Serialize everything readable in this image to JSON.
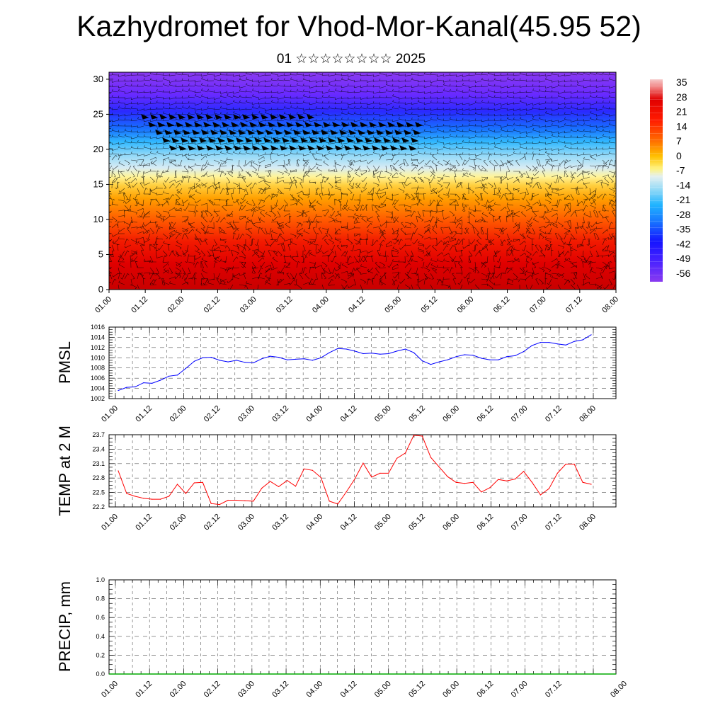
{
  "title": "Kazhydromet for Vhod-Mor-Kanal(45.95 52)",
  "subtitle": "01 ☆☆☆☆☆☆☆☆ 2025",
  "colors": {
    "pmsl_line": "#0000ff",
    "temp_line": "#ff0000",
    "precip_line": "#00aa00"
  },
  "chart_data": [
    {
      "type": "heatmap",
      "name": "vertical-section",
      "title": "",
      "xlabel": "",
      "ylabel": "",
      "x_ticks": [
        "01.00",
        "01.12",
        "02.00",
        "02.12",
        "03.00",
        "03.12",
        "04.00",
        "04.12",
        "05.00",
        "05.12",
        "06.00",
        "06.12",
        "07.00",
        "07.12",
        "08.00"
      ],
      "ylim": [
        0,
        31
      ],
      "y_ticks": [
        0,
        5,
        10,
        15,
        20,
        25,
        30
      ],
      "colorbar": {
        "labels": [
          "35",
          "28",
          "21",
          "14",
          "7",
          "0",
          "-7",
          "-14",
          "-21",
          "-28",
          "-35",
          "-42",
          "-49",
          "-56"
        ],
        "range": [
          -63,
          42
        ]
      },
      "overlay": "wind barbs"
    },
    {
      "type": "line",
      "name": "pmsl",
      "ylabel": "PMSL",
      "ylim": [
        1002,
        1016
      ],
      "y_ticks": [
        1002,
        1004,
        1006,
        1008,
        1010,
        1012,
        1014,
        1016
      ],
      "x_ticks": [
        "01.00",
        "01.12",
        "02.00",
        "02.12",
        "03.00",
        "03.12",
        "04.00",
        "04.12",
        "05.00",
        "05.12",
        "06.00",
        "06.12",
        "07.00",
        "07.12",
        "08.00"
      ],
      "x": [
        0,
        3,
        6,
        9,
        12,
        15,
        18,
        21,
        24,
        27,
        30,
        33,
        36,
        39,
        42,
        45,
        48,
        51,
        54,
        57,
        60,
        63,
        66,
        69,
        72,
        75,
        78,
        81,
        84,
        87,
        90,
        93,
        96,
        99,
        102,
        105,
        108,
        111,
        114,
        117,
        120,
        123,
        126,
        129,
        132,
        135,
        138,
        141,
        144,
        147,
        150,
        153,
        156,
        159,
        162,
        165,
        168
      ],
      "values": [
        1003.6,
        1004.2,
        1004.3,
        1005.1,
        1005.0,
        1005.6,
        1006.4,
        1006.6,
        1007.9,
        1009.3,
        1010.0,
        1010.1,
        1009.5,
        1009.2,
        1009.5,
        1009.1,
        1009.0,
        1009.8,
        1010.3,
        1010.1,
        1009.6,
        1009.7,
        1009.8,
        1009.5,
        1010.0,
        1011.0,
        1011.8,
        1011.7,
        1011.3,
        1010.8,
        1010.9,
        1010.7,
        1010.8,
        1011.3,
        1011.7,
        1011.0,
        1009.4,
        1008.7,
        1009.2,
        1009.6,
        1010.2,
        1010.6,
        1010.5,
        1009.9,
        1009.6,
        1009.6,
        1010.2,
        1010.4,
        1011.2,
        1012.4,
        1013.0,
        1013.0,
        1012.7,
        1012.5,
        1013.2,
        1013.5,
        1014.5
      ]
    },
    {
      "type": "line",
      "name": "temp",
      "ylabel": "TEMP at 2 M",
      "ylim": [
        22.2,
        23.7
      ],
      "y_ticks": [
        "22.2",
        "22.5",
        "22.8",
        "23.1",
        "23.4",
        "23.7"
      ],
      "x_ticks": [
        "01.00",
        "01.12",
        "02.00",
        "02.12",
        "03.00",
        "03.12",
        "04.00",
        "04.12",
        "05.00",
        "05.12",
        "06.00",
        "06.12",
        "07.00",
        "07.12",
        "08.00"
      ],
      "x": [
        0,
        3,
        6,
        9,
        12,
        15,
        18,
        21,
        24,
        27,
        30,
        33,
        36,
        39,
        42,
        45,
        48,
        51,
        54,
        57,
        60,
        63,
        66,
        69,
        72,
        75,
        78,
        81,
        84,
        87,
        90,
        93,
        96,
        99,
        102,
        105,
        108,
        111,
        114,
        117,
        120,
        123,
        126,
        129,
        132,
        135,
        138,
        141,
        144,
        147,
        150,
        153,
        156,
        159,
        162,
        165,
        168
      ],
      "values": [
        22.95,
        22.48,
        22.42,
        22.38,
        22.36,
        22.36,
        22.42,
        22.67,
        22.48,
        22.7,
        22.71,
        22.27,
        22.25,
        22.34,
        22.34,
        22.33,
        22.32,
        22.59,
        22.73,
        22.62,
        22.75,
        22.63,
        22.99,
        22.96,
        22.81,
        22.32,
        22.26,
        22.51,
        22.78,
        23.11,
        22.82,
        22.9,
        22.9,
        23.21,
        23.32,
        23.69,
        23.67,
        23.23,
        23.03,
        22.83,
        22.71,
        22.69,
        22.71,
        22.51,
        22.6,
        22.77,
        22.74,
        22.78,
        22.94,
        22.71,
        22.45,
        22.58,
        22.9,
        23.09,
        23.09,
        22.71,
        22.67
      ]
    },
    {
      "type": "line",
      "name": "precip",
      "ylabel": "PRECIP, mm",
      "ylim": [
        0,
        1
      ],
      "y_ticks": [
        "0.0",
        "0.2",
        "0.4",
        "0.6",
        "0.8",
        "1.0"
      ],
      "x_ticks": [
        "01.00",
        "01.12",
        "02.00",
        "02.12",
        "03.00",
        "03.12",
        "04.00",
        "04.12",
        "05.00",
        "05.12",
        "06.00",
        "06.12",
        "07.00",
        "07.12",
        "08.00"
      ],
      "x": [
        0,
        168
      ],
      "values": [
        0,
        0
      ]
    }
  ]
}
